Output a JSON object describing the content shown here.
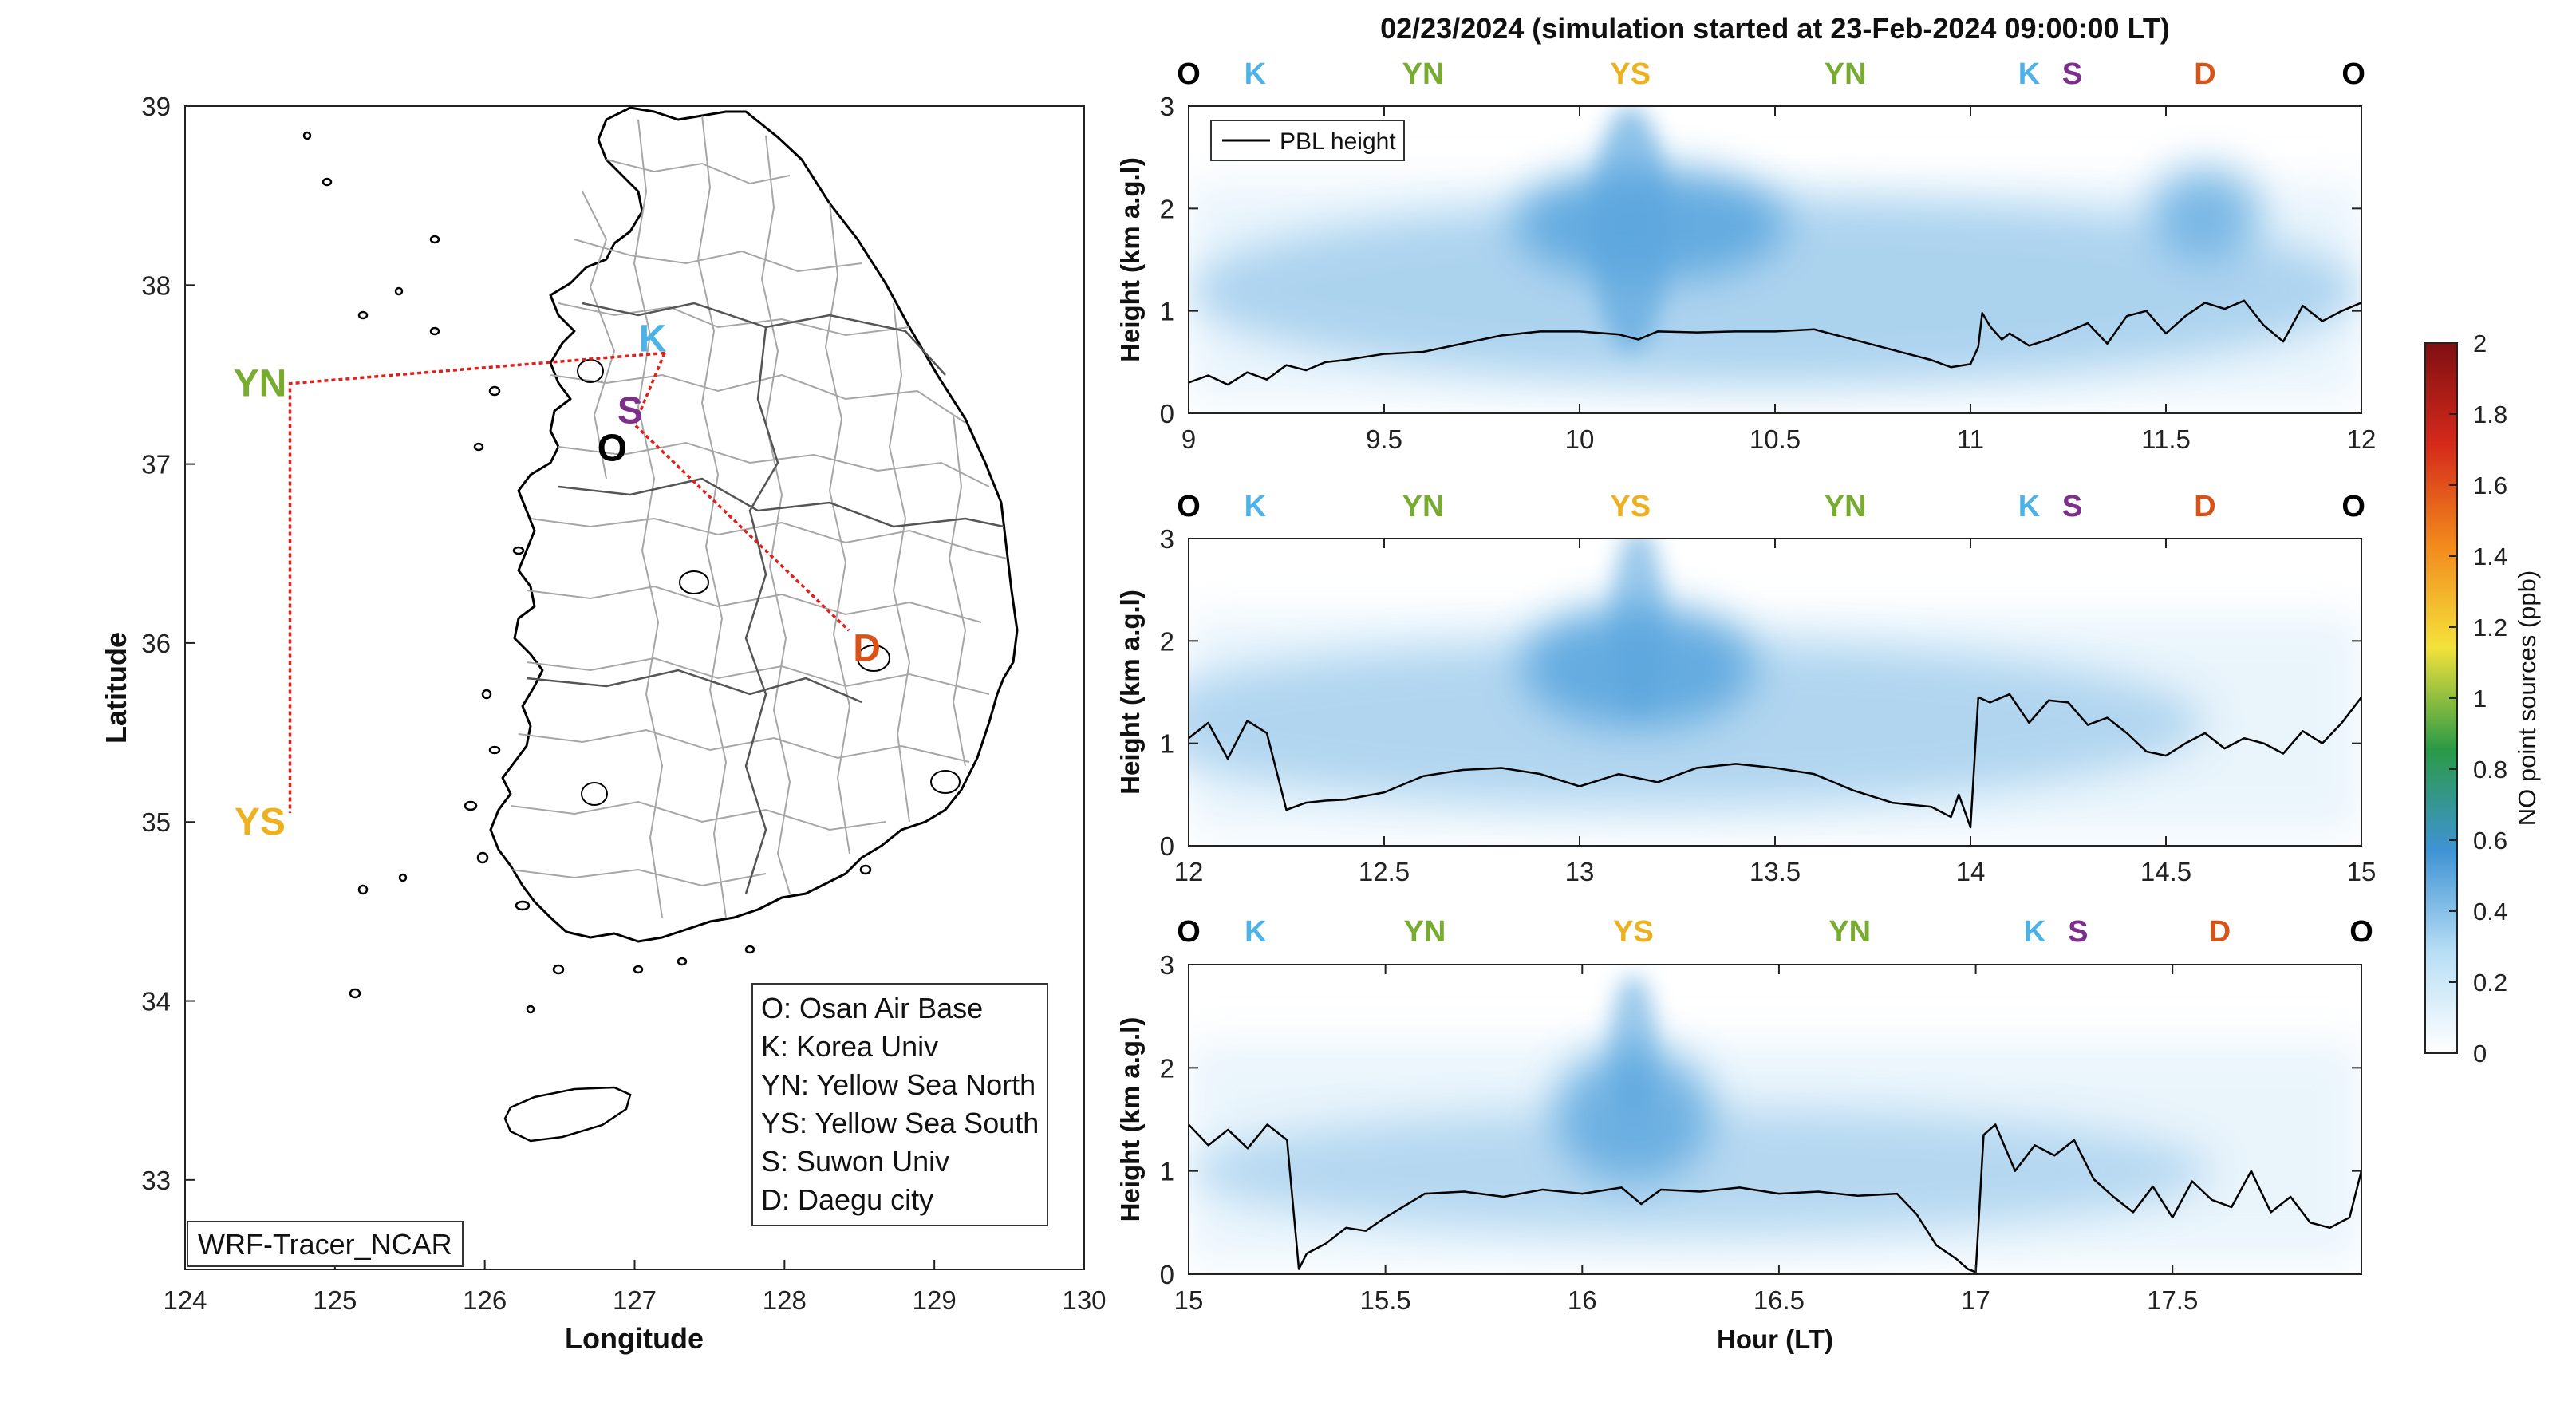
{
  "figure_title": "02/23/2024 (simulation started at 23-Feb-2024 09:00:00 LT)",
  "colors": {
    "O": "#000000",
    "K": "#4db3e6",
    "YN": "#77ac30",
    "YS": "#edb120",
    "S": "#7e2f8e",
    "D": "#d95319",
    "flight_track": "#e0201b",
    "map_coast": "#000000",
    "map_province": "#555555",
    "map_district": "#a6a6a6",
    "plume": "#5aa6de",
    "pbl_line": "#000000"
  },
  "chart_data": [
    {
      "type": "map",
      "id": "map",
      "xlabel": "Longitude",
      "ylabel": "Latitude",
      "xlim": [
        124,
        130
      ],
      "ylim": [
        32.5,
        39
      ],
      "xticks": [
        124,
        125,
        126,
        127,
        128,
        129,
        130
      ],
      "yticks": [
        33,
        34,
        35,
        36,
        37,
        38,
        39
      ],
      "site_labels": [
        {
          "code": "YN",
          "lon": 124.5,
          "lat": 37.45
        },
        {
          "code": "YS",
          "lon": 124.5,
          "lat": 35.0
        },
        {
          "code": "K",
          "lon": 127.12,
          "lat": 37.7
        },
        {
          "code": "S",
          "lon": 126.97,
          "lat": 37.3
        },
        {
          "code": "O",
          "lon": 126.85,
          "lat": 37.09
        },
        {
          "code": "D",
          "lon": 128.55,
          "lat": 35.97
        }
      ],
      "flight_track": [
        {
          "lon": 127.2,
          "lat": 37.62
        },
        {
          "lon": 126.9,
          "lat": 37.6
        },
        {
          "lon": 124.7,
          "lat": 37.45
        },
        {
          "lon": 124.7,
          "lat": 35.05
        }
      ],
      "flight_track_2": [
        {
          "lon": 127.2,
          "lat": 37.62
        },
        {
          "lon": 127.0,
          "lat": 37.22
        },
        {
          "lon": 128.43,
          "lat": 36.07
        }
      ],
      "legend": [
        "O: Osan Air Base",
        "K: Korea Univ",
        "YN: Yellow Sea North",
        "YS: Yellow Sea South",
        "S: Suwon Univ",
        "D: Daegu city"
      ],
      "model_label": "WRF-Tracer_NCAR"
    },
    {
      "type": "heatmap",
      "id": "curtain-1",
      "ylabel": "Height (km a.g.l)",
      "xlim": [
        9,
        12
      ],
      "ylim": [
        0,
        3
      ],
      "xticks": [
        "9",
        "9.5",
        "10",
        "10.5",
        "11",
        "11.5",
        "12"
      ],
      "yticks": [
        "0",
        "1",
        "2",
        "3"
      ],
      "legend": [
        "PBL height"
      ],
      "site_markers": [
        {
          "code": "O",
          "x": 9.0
        },
        {
          "code": "K",
          "x": 9.17
        },
        {
          "code": "YN",
          "x": 9.6
        },
        {
          "code": "YS",
          "x": 10.13
        },
        {
          "code": "YN",
          "x": 10.68
        },
        {
          "code": "K",
          "x": 11.15
        },
        {
          "code": "S",
          "x": 11.26
        },
        {
          "code": "D",
          "x": 11.6
        },
        {
          "code": "O",
          "x": 11.98
        }
      ],
      "pbl_series": {
        "name": "PBL height",
        "x": [
          9.0,
          9.05,
          9.1,
          9.15,
          9.2,
          9.25,
          9.3,
          9.35,
          9.4,
          9.5,
          9.6,
          9.7,
          9.8,
          9.9,
          10.0,
          10.1,
          10.15,
          10.2,
          10.3,
          10.4,
          10.5,
          10.6,
          10.7,
          10.8,
          10.9,
          10.95,
          11.0,
          11.02,
          11.03,
          11.05,
          11.08,
          11.1,
          11.15,
          11.2,
          11.3,
          11.35,
          11.4,
          11.45,
          11.5,
          11.55,
          11.6,
          11.65,
          11.7,
          11.75,
          11.8,
          11.85,
          11.9,
          11.95,
          12.0
        ],
        "y": [
          0.3,
          0.37,
          0.28,
          0.4,
          0.33,
          0.47,
          0.42,
          0.5,
          0.52,
          0.58,
          0.6,
          0.68,
          0.76,
          0.8,
          0.8,
          0.77,
          0.72,
          0.8,
          0.79,
          0.8,
          0.8,
          0.82,
          0.72,
          0.62,
          0.52,
          0.45,
          0.48,
          0.65,
          0.98,
          0.85,
          0.72,
          0.78,
          0.66,
          0.72,
          0.88,
          0.68,
          0.95,
          1.0,
          0.78,
          0.95,
          1.08,
          1.02,
          1.1,
          0.86,
          0.7,
          1.05,
          0.9,
          1.0,
          1.08
        ]
      },
      "plume_blobs": [
        {
          "x": 10.18,
          "y": 1.85,
          "rx": 0.35,
          "ry": 0.55,
          "value": 0.45
        },
        {
          "x": 10.13,
          "y": 1.8,
          "rx": 0.1,
          "ry": 1.2,
          "value": 0.3
        },
        {
          "x": 11.6,
          "y": 1.95,
          "rx": 0.14,
          "ry": 0.45,
          "value": 0.35
        },
        {
          "x": 10.5,
          "y": 1.2,
          "rx": 1.5,
          "ry": 0.9,
          "value": 0.12
        }
      ]
    },
    {
      "type": "heatmap",
      "id": "curtain-2",
      "ylabel": "Height (km a.g.l)",
      "xlim": [
        12,
        15
      ],
      "ylim": [
        0,
        3
      ],
      "xticks": [
        "12",
        "12.5",
        "13",
        "13.5",
        "14",
        "14.5",
        "15"
      ],
      "yticks": [
        "0",
        "1",
        "2",
        "3"
      ],
      "site_markers": [
        {
          "code": "O",
          "x": 12.0
        },
        {
          "code": "K",
          "x": 12.17
        },
        {
          "code": "YN",
          "x": 12.6
        },
        {
          "code": "YS",
          "x": 13.13
        },
        {
          "code": "YN",
          "x": 13.68
        },
        {
          "code": "K",
          "x": 14.15
        },
        {
          "code": "S",
          "x": 14.26
        },
        {
          "code": "D",
          "x": 14.6
        },
        {
          "code": "O",
          "x": 14.98
        }
      ],
      "pbl_series": {
        "name": "PBL height",
        "x": [
          12.0,
          12.05,
          12.1,
          12.15,
          12.2,
          12.25,
          12.3,
          12.35,
          12.4,
          12.5,
          12.6,
          12.7,
          12.8,
          12.9,
          13.0,
          13.1,
          13.2,
          13.3,
          13.4,
          13.5,
          13.6,
          13.7,
          13.8,
          13.9,
          13.95,
          13.97,
          14.0,
          14.02,
          14.05,
          14.1,
          14.15,
          14.2,
          14.25,
          14.3,
          14.35,
          14.4,
          14.45,
          14.5,
          14.55,
          14.6,
          14.65,
          14.7,
          14.75,
          14.8,
          14.85,
          14.9,
          14.95,
          15.0
        ],
        "y": [
          1.05,
          1.2,
          0.85,
          1.22,
          1.1,
          0.35,
          0.42,
          0.44,
          0.45,
          0.52,
          0.68,
          0.74,
          0.76,
          0.7,
          0.58,
          0.7,
          0.62,
          0.76,
          0.8,
          0.76,
          0.7,
          0.54,
          0.42,
          0.38,
          0.28,
          0.5,
          0.18,
          1.45,
          1.4,
          1.48,
          1.2,
          1.42,
          1.4,
          1.18,
          1.25,
          1.1,
          0.92,
          0.88,
          1.0,
          1.1,
          0.95,
          1.05,
          1.0,
          0.9,
          1.12,
          1.0,
          1.2,
          1.45
        ]
      },
      "plume_blobs": [
        {
          "x": 13.15,
          "y": 1.75,
          "rx": 0.3,
          "ry": 0.6,
          "value": 0.45
        },
        {
          "x": 13.15,
          "y": 2.2,
          "rx": 0.07,
          "ry": 0.9,
          "value": 0.25
        },
        {
          "x": 13.2,
          "y": 1.2,
          "rx": 1.4,
          "ry": 0.8,
          "value": 0.1
        }
      ]
    },
    {
      "type": "heatmap",
      "id": "curtain-3",
      "ylabel": "Height (km a.g.l)",
      "xlabel": "Hour (LT)",
      "xlim": [
        15,
        17.98
      ],
      "ylim": [
        0,
        3
      ],
      "xticks": [
        "15",
        "15.5",
        "16",
        "16.5",
        "17",
        "17.5"
      ],
      "yticks": [
        "0",
        "1",
        "2",
        "3"
      ],
      "site_markers": [
        {
          "code": "O",
          "x": 15.0
        },
        {
          "code": "K",
          "x": 15.17
        },
        {
          "code": "YN",
          "x": 15.6
        },
        {
          "code": "YS",
          "x": 16.13
        },
        {
          "code": "YN",
          "x": 16.68
        },
        {
          "code": "K",
          "x": 17.15
        },
        {
          "code": "S",
          "x": 17.26
        },
        {
          "code": "D",
          "x": 17.62
        },
        {
          "code": "O",
          "x": 17.98
        }
      ],
      "pbl_series": {
        "name": "PBL height",
        "x": [
          15.0,
          15.05,
          15.1,
          15.15,
          15.2,
          15.25,
          15.28,
          15.3,
          15.35,
          15.4,
          15.45,
          15.5,
          15.6,
          15.7,
          15.8,
          15.9,
          16.0,
          16.1,
          16.15,
          16.2,
          16.3,
          16.4,
          16.5,
          16.6,
          16.7,
          16.8,
          16.85,
          16.9,
          16.95,
          16.98,
          17.0,
          17.02,
          17.05,
          17.1,
          17.15,
          17.2,
          17.25,
          17.3,
          17.35,
          17.4,
          17.45,
          17.5,
          17.55,
          17.6,
          17.65,
          17.7,
          17.75,
          17.8,
          17.85,
          17.9,
          17.95,
          17.98
        ],
        "y": [
          1.45,
          1.25,
          1.4,
          1.22,
          1.45,
          1.3,
          0.05,
          0.2,
          0.3,
          0.45,
          0.42,
          0.55,
          0.78,
          0.8,
          0.75,
          0.82,
          0.78,
          0.84,
          0.68,
          0.82,
          0.8,
          0.84,
          0.78,
          0.8,
          0.76,
          0.78,
          0.58,
          0.28,
          0.15,
          0.05,
          0.02,
          1.35,
          1.45,
          1.0,
          1.25,
          1.15,
          1.3,
          0.92,
          0.75,
          0.6,
          0.85,
          0.55,
          0.9,
          0.72,
          0.65,
          1.0,
          0.6,
          0.75,
          0.5,
          0.45,
          0.55,
          1.0
        ]
      },
      "plume_blobs": [
        {
          "x": 16.13,
          "y": 1.55,
          "rx": 0.2,
          "ry": 0.65,
          "value": 0.4
        },
        {
          "x": 16.13,
          "y": 2.2,
          "rx": 0.06,
          "ry": 0.7,
          "value": 0.25
        },
        {
          "x": 16.3,
          "y": 1.0,
          "rx": 1.3,
          "ry": 0.6,
          "value": 0.08
        }
      ]
    },
    {
      "type": "colorbar",
      "id": "colorbar",
      "label": "NO point sources (ppb)",
      "range": [
        0,
        2
      ],
      "ticks": [
        "0",
        "0.2",
        "0.4",
        "0.6",
        "0.8",
        "1",
        "1.2",
        "1.4",
        "1.6",
        "1.8",
        "2"
      ],
      "stops": [
        "#ffffff",
        "#b7def5",
        "#3f93d4",
        "#2b9a45",
        "#f4e23a",
        "#f28a1d",
        "#d52a1b",
        "#7f0f12"
      ]
    }
  ]
}
